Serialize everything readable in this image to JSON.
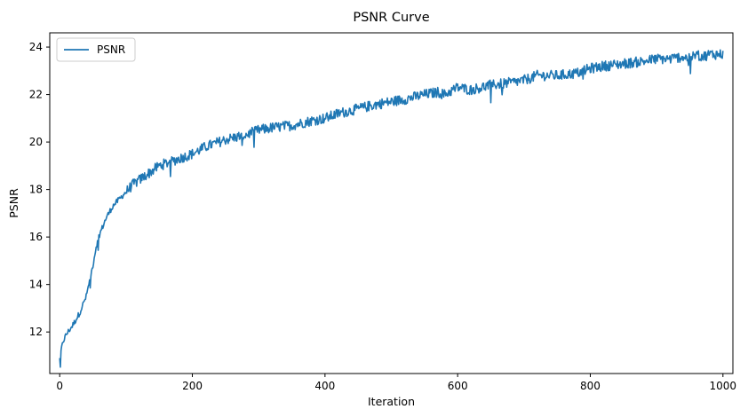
{
  "chart_data": {
    "type": "line",
    "title": "PSNR Curve",
    "xlabel": "Iteration",
    "ylabel": "PSNR",
    "xlim": [
      -15,
      1015
    ],
    "ylim": [
      10.25,
      24.6
    ],
    "xticks": [
      0,
      200,
      400,
      600,
      800,
      1000
    ],
    "yticks": [
      12,
      14,
      16,
      18,
      20,
      22,
      24
    ],
    "grid": false,
    "legend": {
      "position": "top-left",
      "entries": [
        "PSNR"
      ]
    },
    "series": [
      {
        "name": "PSNR",
        "color": "#1f77b4",
        "x": [
          0,
          5,
          10,
          20,
          30,
          40,
          50,
          55,
          60,
          70,
          80,
          90,
          100,
          110,
          120,
          130,
          140,
          150,
          160,
          180,
          200,
          220,
          250,
          280,
          300,
          320,
          350,
          380,
          400,
          420,
          450,
          480,
          500,
          520,
          550,
          570,
          580,
          600,
          620,
          650,
          680,
          700,
          720,
          750,
          780,
          800,
          820,
          850,
          880,
          900,
          920,
          940,
          950,
          960,
          970,
          980,
          990,
          1000
        ],
        "y": [
          10.9,
          11.6,
          11.9,
          12.3,
          12.8,
          13.5,
          14.8,
          15.6,
          16.1,
          16.8,
          17.3,
          17.6,
          17.9,
          18.2,
          18.4,
          18.6,
          18.8,
          19.0,
          19.1,
          19.3,
          19.5,
          19.8,
          20.1,
          20.3,
          20.5,
          20.6,
          20.7,
          20.9,
          21.0,
          21.2,
          21.4,
          21.6,
          21.7,
          21.8,
          22.0,
          22.1,
          22.0,
          22.3,
          22.2,
          22.4,
          22.5,
          22.6,
          22.8,
          22.8,
          22.9,
          23.1,
          23.2,
          23.3,
          23.4,
          23.5,
          23.5,
          23.6,
          23.5,
          23.7,
          23.6,
          23.7,
          23.7,
          23.7
        ]
      }
    ]
  }
}
